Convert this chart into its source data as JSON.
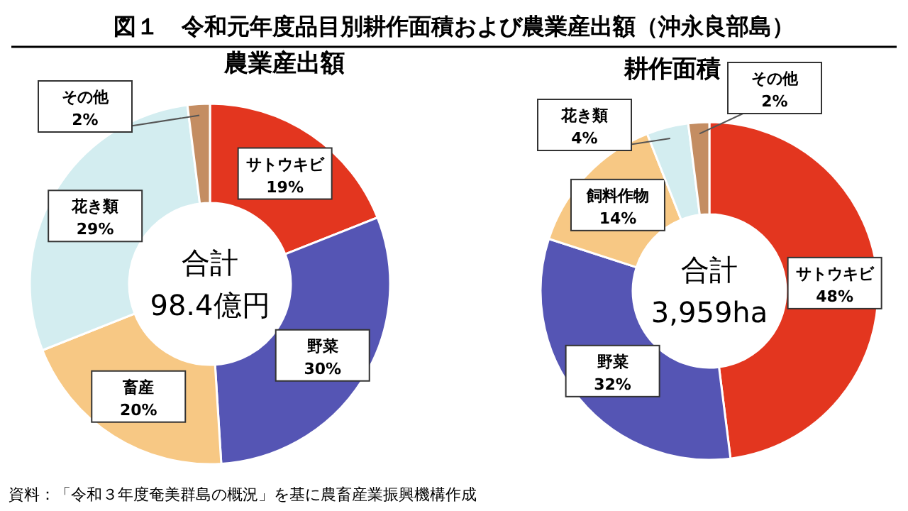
{
  "chart_data": [
    {
      "type": "donut",
      "title": "図１　令和元年度品目別耕作面積および農業産出額（沖永良部島）",
      "subtitle": "農業産出額",
      "categories": [
        "サトウキビ",
        "野菜",
        "畜産",
        "花き類",
        "その他"
      ],
      "values": [
        19,
        30,
        20,
        29,
        2
      ],
      "colors": [
        "#e3361f",
        "#5555b4",
        "#f7c884",
        "#d3edf0",
        "#c48d62"
      ],
      "value_labels": [
        "19%",
        "30%",
        "20%",
        "29%",
        "2%"
      ],
      "annotations": [
        "合計",
        "98.4億円",
        "資料：「令和３年度奄美群島の概況」を基に農畜産業振興機構作成"
      ]
    },
    {
      "type": "donut",
      "title": "耕作面積",
      "categories": [
        "サトウキビ",
        "野菜",
        "飼料作物",
        "花き類",
        "その他"
      ],
      "values": [
        48,
        32,
        14,
        4,
        2
      ],
      "colors": [
        "#e3361f",
        "#5555b4",
        "#f7c884",
        "#d3edf0",
        "#c48d62"
      ],
      "value_labels": [
        "48%",
        "32%",
        "14%",
        "4%",
        "2%"
      ],
      "annotations": [
        "合計",
        "3,959ha"
      ]
    }
  ]
}
